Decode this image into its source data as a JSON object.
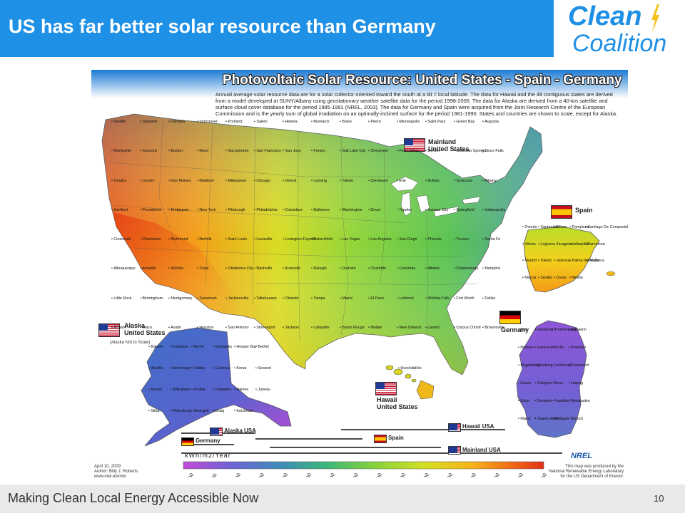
{
  "slide": {
    "title": "US has far better solar resource than Germany",
    "footer": "Making Clean Local Energy Accessible Now",
    "page_number": "10"
  },
  "logo": {
    "line1": "Clean",
    "line2": "Coalition",
    "color": "#1e90e6"
  },
  "map": {
    "title": "Photovoltaic Solar Resource: United States - Spain - Germany",
    "description": "Annual average solar resource data are for a solar collector oriented toward the south at a tilt = local latitude. The data for Hawaii and the 48 contiguous states are derived from a model developed at SUNY/Albany using geostationary weather satellite data for the period 1998-2005. The data for Alaska are derived from a 40-km satellite and surface cloud cover database for the period 1985-1991 (NREL, 2003). The data for Germany and Spain were acquired from the Joint Research Centre of the European Commission and is the yearly sum of global irradiation on an optimally-inclined surface for the period 1981-1990. States and countries are shown to scale, except for Alaska.",
    "regions": {
      "mainland": "Mainland\nUnited States",
      "spain": "Spain",
      "germany": "Germany",
      "alaska": "Alaska\nUnited States",
      "alaska_note": "(Alaska Not to Scale)",
      "hawaii": "Hawaii\nUnited States"
    },
    "cities_us": [
      "Seattle",
      "Spokane",
      "Olympia",
      "Vancouver",
      "Portland",
      "Salem",
      "Helena",
      "Bismarck",
      "Boise",
      "Pierre",
      "Minneapolis",
      "Saint Paul",
      "Green Bay",
      "Augusta",
      "Montpelier",
      "Concord",
      "Boston",
      "Reno",
      "Sacramento",
      "San Francisco",
      "San Jose",
      "Fresno",
      "Salt Lake City",
      "Cheyenne",
      "Fort Collins",
      "Denver",
      "Colorado Springs",
      "Sioux Falls",
      "Omaha",
      "Lincoln",
      "Des Moines",
      "Madison",
      "Milwaukee",
      "Chicago",
      "Detroit",
      "Lansing",
      "Toledo",
      "Cleveland",
      "Erie",
      "Buffalo",
      "Syracuse",
      "Albany",
      "Hartford",
      "Providence",
      "Bridgeport",
      "New York",
      "Pittsburgh",
      "Philadelphia",
      "Columbus",
      "Baltimore",
      "Washington",
      "Dover",
      "Topeka",
      "Kansas City",
      "Springfield",
      "Indianapolis",
      "Cincinnati",
      "Charleston",
      "Richmond",
      "Norfolk",
      "Saint Louis",
      "Louisville",
      "Lexington-Fayette",
      "Bakersfield",
      "Las Vegas",
      "Los Angeles",
      "San Diego",
      "Phoenix",
      "Tucson",
      "Santa Fe",
      "Albuquerque",
      "Amarillo",
      "Wichita",
      "Tulsa",
      "Oklahoma City",
      "Nashville",
      "Knoxville",
      "Raleigh",
      "Durham",
      "Charlotte",
      "Columbia",
      "Atlanta",
      "Chattanooga",
      "Memphis",
      "Little Rock",
      "Birmingham",
      "Montgomery",
      "Savannah",
      "Jacksonville",
      "Tallahassee",
      "Orlando",
      "Tampa",
      "Miami",
      "El Paso",
      "Lubbock",
      "Wichita Falls",
      "Fort Worth",
      "Dallas",
      "Abilene",
      "Waco",
      "Austin",
      "Houston",
      "San Antonio",
      "Shreveport",
      "Jackson",
      "Lafayette",
      "Baton Rouge",
      "Mobile",
      "New Orleans",
      "Laredo",
      "Corpus Christi",
      "Brownsville"
    ],
    "cities_alaska": [
      "Barrow",
      "Kotzebue",
      "Nome",
      "Fairbanks",
      "Hooper Bay",
      "Bethel",
      "Wasilla",
      "Anchorage",
      "Valdez",
      "Cordova",
      "Kenai",
      "Seward",
      "Homer",
      "Dillingham",
      "Kodiak",
      "Unalaska",
      "Haines",
      "Juneau",
      "Sitka",
      "Petersburg",
      "Wrangell",
      "Craig",
      "Ketchikan"
    ],
    "cities_hawaii": [
      "Honolulu",
      "Hilo"
    ],
    "cities_spain": [
      "Oviedo",
      "Santander",
      "Bilbao",
      "Pamplona",
      "Santiago De Compostela",
      "Vitoria",
      "Logrono",
      "Zaragoza",
      "Valladolid",
      "Barcelona",
      "Madrid",
      "Toledo",
      "Valencia",
      "Palma De Mallorca",
      "Merida",
      "Murcia",
      "Sevilla",
      "Ceuta",
      "Melilla"
    ],
    "cities_germany": [
      "Kiel",
      "Hamburg",
      "Bremerhaven",
      "Schwerin",
      "Bremen",
      "Hannover",
      "Berlin",
      "Potsdam",
      "Magdeburg",
      "Duisburg",
      "Dortmund",
      "Dusseldorf",
      "Essen",
      "Cologne",
      "Bonn",
      "Leipzig",
      "Erfurt",
      "Dresden",
      "Frankfurt",
      "Wiesbaden",
      "Mainz",
      "Saarbrucken",
      "Stuttgart",
      "Munich"
    ],
    "scale_bars": [
      {
        "label": "Alaska USA"
      },
      {
        "label": "Germany"
      },
      {
        "label": "Hawaii USA"
      },
      {
        "label": "Spain"
      },
      {
        "label": "Mainland USA"
      }
    ],
    "units_label": "kWh/m2/Year",
    "legend_ticks": [
      "1000",
      "1100",
      "1200",
      "1300",
      "1400",
      "1500",
      "1600",
      "1700",
      "1800",
      "1900",
      "2000",
      "2100",
      "2200",
      "2300",
      "2400",
      "2500"
    ],
    "legend_colors": [
      "#c24bd6",
      "#9a54d8",
      "#6f63d4",
      "#4d79c7",
      "#3f8cb8",
      "#38a3a0",
      "#3db878",
      "#56c850",
      "#86d23c",
      "#b0dc2a",
      "#d4e020",
      "#efd81c",
      "#f7b41a",
      "#f58b18",
      "#ef5e17",
      "#e22f14"
    ],
    "credit": "April 10, 2009\nAuthor: Billy J. Roberts\nwww.nrel.gov/gis",
    "producer_note": "This map was produced by the\nNational Renewable Energy Laboratory\nfor the US Department of Energy.",
    "nrel_logo": "NREL"
  }
}
